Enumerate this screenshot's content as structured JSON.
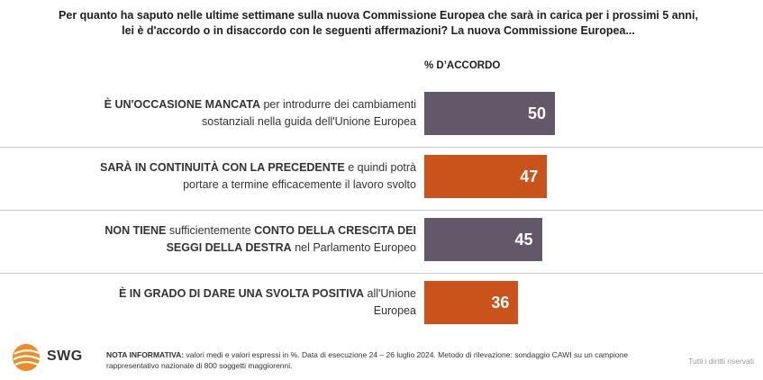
{
  "title_line1": "Per quanto ha saputo nelle ultime settimane sulla nuova Commissione Europea che sarà in carica per i prossimi 5 anni,",
  "title_line2": "lei è d'accordo o in disaccordo con le seguenti affermazioni? La nuova Commissione Europea...",
  "column_header": "% D’ACCORDO",
  "rows": [
    {
      "parts": [
        {
          "text": "È UN'OCCASIONE MANCATA",
          "bold": true
        },
        {
          "text": " per introdurre dei cambiamenti sostanziali nella guida dell'Unione Europea",
          "bold": false
        }
      ],
      "value_label": "50",
      "color": "#63586a"
    },
    {
      "parts": [
        {
          "text": "SARÀ IN CONTINUITÀ CON LA PRECEDENTE",
          "bold": true
        },
        {
          "text": " e quindi potrà portare a termine efficacemente il lavoro svolto",
          "bold": false
        }
      ],
      "value_label": "47",
      "color": "#c9531a"
    },
    {
      "parts": [
        {
          "text": "NON TIENE",
          "bold": true
        },
        {
          "text": " sufficientemente ",
          "bold": false
        },
        {
          "text": "CONTO DELLA CRESCITA DEI SEGGI DELLA DESTRA",
          "bold": true
        },
        {
          "text": " nel Parlamento Europeo",
          "bold": false
        }
      ],
      "value_label": "45",
      "color": "#63586a"
    },
    {
      "parts": [
        {
          "text": "È IN GRADO DI DARE UNA SVOLTA POSITIVA",
          "bold": true
        },
        {
          "text": " all'Unione Europea",
          "bold": false
        }
      ],
      "value_label": "36",
      "color": "#c9531a"
    }
  ],
  "chart_data": {
    "type": "bar",
    "orientation": "horizontal",
    "categories": [
      "È UN'OCCASIONE MANCATA per introdurre dei cambiamenti sostanziali nella guida dell'Unione Europea",
      "SARÀ IN CONTINUITÀ CON LA PRECEDENTE e quindi potrà portare a termine efficacemente il lavoro svolto",
      "NON TIENE sufficientemente CONTO DELLA CRESCITA DEI SEGGI DELLA DESTRA nel Parlamento Europeo",
      "È IN GRADO DI DARE UNA SVOLTA POSITIVA all'Unione Europea"
    ],
    "values": [
      50,
      47,
      45,
      36
    ],
    "colors": [
      "#63586a",
      "#c9531a",
      "#63586a",
      "#c9531a"
    ],
    "xlim": [
      0,
      100
    ],
    "grid": false,
    "ylabel": "% D’ACCORDO"
  },
  "footer": {
    "logo_text": "SWG",
    "note_label": "NOTA INFORMATIVA:",
    "note_text": " valori medi e valori espressi in %. Data di esecuzione 24 – 26 luglio 2024. Metodo di rilevazione: sondaggio CAWI su un campione rappresentativo nazionale di 800 soggetti maggiorenni.",
    "rights": "Tutti i diritti riservati"
  },
  "colors": {
    "purple_bar": "#63586a",
    "orange_bar": "#c9531a",
    "logo_orange": "#f08a24"
  }
}
